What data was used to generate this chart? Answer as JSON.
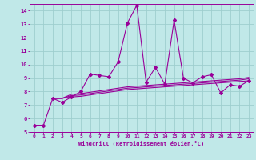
{
  "xlabel": "Windchill (Refroidissement éolien,°C)",
  "xlim": [
    -0.5,
    23.5
  ],
  "ylim": [
    5,
    14.5
  ],
  "yticks": [
    5,
    6,
    7,
    8,
    9,
    10,
    11,
    12,
    13,
    14
  ],
  "xticks": [
    0,
    1,
    2,
    3,
    4,
    5,
    6,
    7,
    8,
    9,
    10,
    11,
    12,
    13,
    14,
    15,
    16,
    17,
    18,
    19,
    20,
    21,
    22,
    23
  ],
  "background_color": "#c0e8e8",
  "line_color": "#990099",
  "grid_color": "#9ecece",
  "main_line": {
    "x": [
      0,
      1,
      2,
      3,
      4,
      5,
      6,
      7,
      8,
      9,
      10,
      11,
      12,
      13,
      14,
      15,
      16,
      17,
      18,
      19,
      20,
      21,
      22,
      23
    ],
    "y": [
      5.5,
      5.5,
      7.5,
      7.2,
      7.6,
      8.0,
      9.3,
      9.2,
      9.1,
      10.2,
      13.1,
      14.4,
      8.7,
      9.8,
      8.55,
      13.3,
      9.0,
      8.65,
      9.1,
      9.25,
      7.9,
      8.5,
      8.4,
      8.8
    ]
  },
  "trend_lines": [
    {
      "x": [
        2,
        3,
        4,
        5,
        6,
        7,
        8,
        9,
        10,
        11,
        12,
        13,
        14,
        15,
        16,
        17,
        18,
        19,
        20,
        21,
        22,
        23
      ],
      "y": [
        7.5,
        7.5,
        7.6,
        7.65,
        7.75,
        7.85,
        7.95,
        8.05,
        8.15,
        8.2,
        8.25,
        8.3,
        8.35,
        8.4,
        8.45,
        8.5,
        8.55,
        8.6,
        8.65,
        8.7,
        8.75,
        8.8
      ]
    },
    {
      "x": [
        2,
        3,
        4,
        5,
        6,
        7,
        8,
        9,
        10,
        11,
        12,
        13,
        14,
        15,
        16,
        17,
        18,
        19,
        20,
        21,
        22,
        23
      ],
      "y": [
        7.5,
        7.5,
        7.7,
        7.75,
        7.85,
        7.95,
        8.05,
        8.15,
        8.25,
        8.3,
        8.35,
        8.4,
        8.45,
        8.5,
        8.55,
        8.6,
        8.65,
        8.7,
        8.75,
        8.8,
        8.85,
        8.95
      ]
    },
    {
      "x": [
        2,
        3,
        4,
        5,
        6,
        7,
        8,
        9,
        10,
        11,
        12,
        13,
        14,
        15,
        16,
        17,
        18,
        19,
        20,
        21,
        22,
        23
      ],
      "y": [
        7.5,
        7.5,
        7.8,
        7.85,
        7.95,
        8.05,
        8.15,
        8.25,
        8.35,
        8.4,
        8.45,
        8.5,
        8.55,
        8.6,
        8.65,
        8.7,
        8.75,
        8.8,
        8.85,
        8.9,
        8.95,
        9.05
      ]
    }
  ]
}
